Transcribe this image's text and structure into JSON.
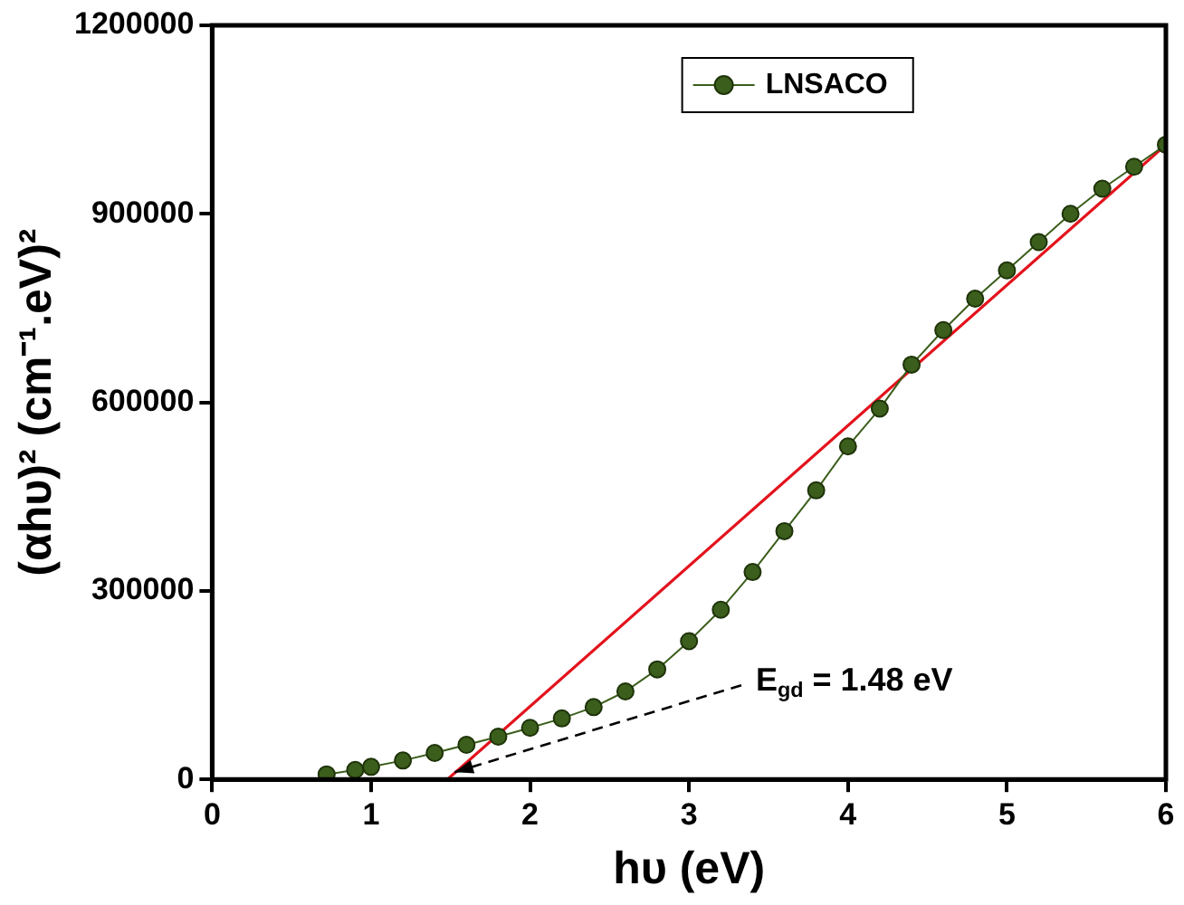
{
  "chart_data": {
    "type": "line",
    "xlabel": "hυ (eV)",
    "ylabel": "(αhυ)² (cm⁻¹.eV)²",
    "xlim": [
      0,
      6
    ],
    "xticks": [
      0,
      1,
      2,
      3,
      4,
      5,
      6
    ],
    "ylim": [
      0,
      1200000
    ],
    "yticks": [
      0,
      300000,
      600000,
      900000,
      1200000
    ],
    "grid": false,
    "legend": "top",
    "marker": "circle",
    "series": [
      {
        "name": "LNSACO",
        "color": "#3b5e1c",
        "x": [
          0.72,
          0.9,
          1.0,
          1.2,
          1.4,
          1.6,
          1.8,
          2.0,
          2.2,
          2.4,
          2.6,
          2.8,
          3.0,
          3.2,
          3.4,
          3.6,
          3.8,
          4.0,
          4.2,
          4.4,
          4.6,
          4.8,
          5.0,
          5.2,
          5.4,
          5.6,
          5.8,
          6.0
        ],
        "values": [
          8000,
          15000,
          20000,
          30000,
          42000,
          55000,
          68000,
          82000,
          97000,
          115000,
          140000,
          175000,
          220000,
          270000,
          330000,
          395000,
          460000,
          530000,
          590000,
          660000,
          715000,
          765000,
          810000,
          855000,
          900000,
          940000,
          975000,
          1010000
        ]
      },
      {
        "type": "line",
        "marker": "none",
        "color": "#e3121c",
        "x": [
          1.48,
          6
        ],
        "values": [
          0,
          1010000
        ]
      }
    ],
    "annotations": [
      {
        "text": "E$_{gd}$ = 1.48 eV",
        "x": 1.48,
        "y": 0
      }
    ]
  }
}
